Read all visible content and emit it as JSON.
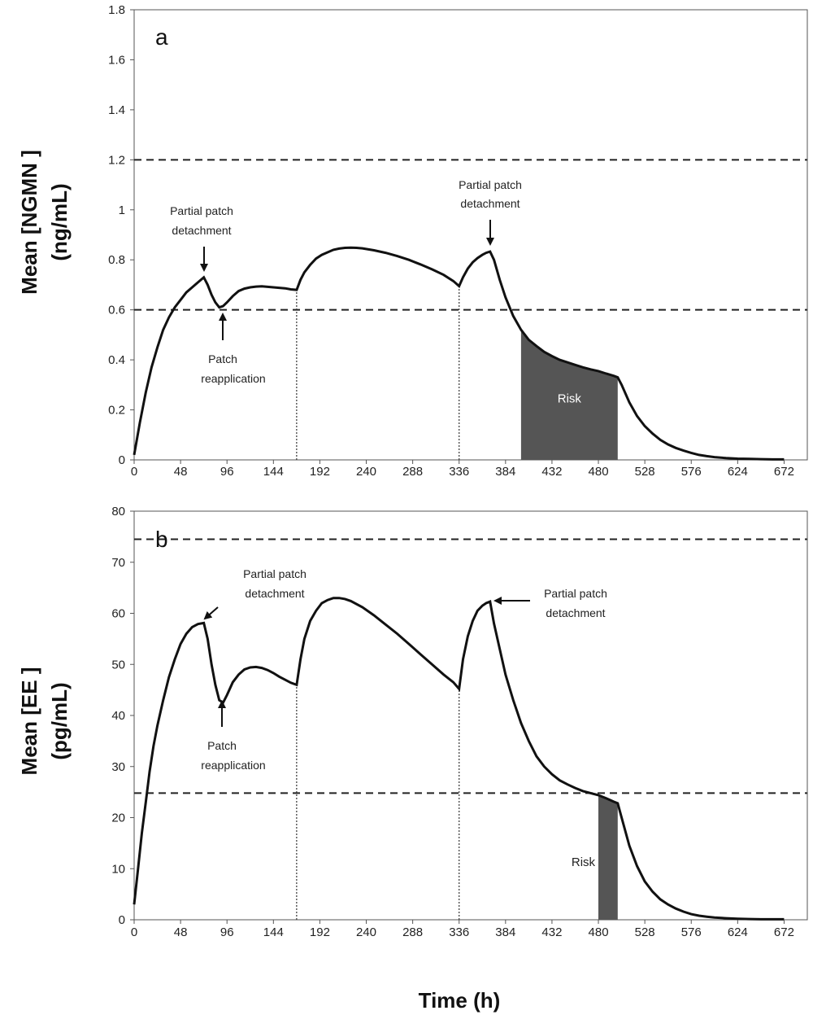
{
  "xlabel": "Time (h)",
  "x_ticks": [
    0,
    48,
    96,
    144,
    192,
    240,
    288,
    336,
    384,
    432,
    480,
    528,
    576,
    624,
    672
  ],
  "chart_data": [
    {
      "type": "line",
      "panel": "a",
      "ylabel_line1": "Mean [NGMN ]",
      "ylabel_line2": "(ng/mL)",
      "xlim": [
        0,
        696
      ],
      "ylim": [
        0,
        1.8
      ],
      "y_ticks": [
        0,
        0.2,
        0.4,
        0.6,
        0.8,
        1,
        1.2,
        1.4,
        1.6,
        1.8
      ],
      "thresholds": [
        1.2,
        0.6
      ],
      "patch_change_times": [
        168,
        336
      ],
      "series": [
        {
          "x": [
            0,
            6,
            12,
            18,
            24,
            30,
            36,
            42,
            48,
            54,
            60,
            66,
            72,
            76,
            80,
            84,
            88,
            92,
            96,
            102,
            108,
            114,
            120,
            126,
            132,
            138,
            144,
            150,
            156,
            162,
            168,
            172,
            176,
            182,
            188,
            194,
            200,
            206,
            212,
            218,
            224,
            230,
            236,
            248,
            260,
            272,
            284,
            296,
            308,
            320,
            330,
            336,
            340,
            345,
            350,
            355,
            360,
            364,
            368,
            372,
            378,
            384,
            392,
            400,
            408,
            416,
            424,
            432,
            440,
            448,
            456,
            464,
            472,
            480,
            488,
            496,
            500,
            504,
            512,
            520,
            528,
            536,
            544,
            552,
            560,
            568,
            576,
            584,
            592,
            600,
            612,
            624,
            636,
            648,
            660,
            672
          ],
          "values": [
            0.02,
            0.15,
            0.27,
            0.37,
            0.45,
            0.52,
            0.57,
            0.61,
            0.64,
            0.67,
            0.69,
            0.71,
            0.73,
            0.7,
            0.66,
            0.63,
            0.61,
            0.615,
            0.63,
            0.655,
            0.675,
            0.685,
            0.69,
            0.693,
            0.694,
            0.692,
            0.69,
            0.688,
            0.686,
            0.682,
            0.68,
            0.72,
            0.75,
            0.78,
            0.805,
            0.82,
            0.83,
            0.84,
            0.845,
            0.848,
            0.849,
            0.848,
            0.846,
            0.838,
            0.828,
            0.815,
            0.8,
            0.782,
            0.762,
            0.74,
            0.715,
            0.695,
            0.73,
            0.765,
            0.79,
            0.807,
            0.82,
            0.828,
            0.833,
            0.8,
            0.72,
            0.65,
            0.575,
            0.52,
            0.48,
            0.455,
            0.432,
            0.415,
            0.4,
            0.39,
            0.38,
            0.37,
            0.362,
            0.355,
            0.345,
            0.336,
            0.33,
            0.3,
            0.23,
            0.175,
            0.135,
            0.105,
            0.08,
            0.062,
            0.048,
            0.037,
            0.028,
            0.02,
            0.015,
            0.011,
            0.007,
            0.005,
            0.004,
            0.003,
            0.002,
            0.002
          ]
        }
      ],
      "risk": {
        "x_start": 400,
        "x_end": 500,
        "label": "Risk"
      },
      "annotations": [
        {
          "line1": "Partial patch",
          "line2": "detachment",
          "x": 72,
          "y": 0.73,
          "direction": "down"
        },
        {
          "line1": "Patch",
          "line2": "reapplication",
          "x": 88,
          "y": 0.61,
          "direction": "up"
        },
        {
          "line1": "Partial patch",
          "line2": "detachment",
          "x": 368,
          "y": 0.833,
          "direction": "down"
        }
      ]
    },
    {
      "type": "line",
      "panel": "b",
      "ylabel_line1": "Mean [EE ]",
      "ylabel_line2": "(pg/mL)",
      "xlim": [
        0,
        696
      ],
      "ylim": [
        0,
        80
      ],
      "y_ticks": [
        0,
        10,
        20,
        30,
        40,
        50,
        60,
        70,
        80
      ],
      "thresholds": [
        74.5,
        24.8
      ],
      "patch_change_times": [
        168,
        336
      ],
      "series": [
        {
          "x": [
            0,
            4,
            8,
            12,
            16,
            20,
            24,
            30,
            36,
            42,
            48,
            54,
            60,
            66,
            72,
            76,
            80,
            84,
            88,
            92,
            96,
            102,
            108,
            114,
            120,
            126,
            132,
            138,
            144,
            150,
            156,
            162,
            168,
            172,
            176,
            182,
            188,
            194,
            200,
            206,
            212,
            218,
            224,
            236,
            248,
            260,
            272,
            284,
            296,
            308,
            320,
            330,
            336,
            340,
            345,
            350,
            355,
            360,
            364,
            368,
            372,
            378,
            384,
            392,
            400,
            408,
            416,
            424,
            432,
            440,
            448,
            456,
            464,
            472,
            480,
            488,
            496,
            500,
            504,
            512,
            520,
            528,
            536,
            544,
            552,
            560,
            568,
            576,
            584,
            592,
            600,
            612,
            624,
            636,
            648,
            660,
            672
          ],
          "values": [
            3,
            10,
            17,
            23,
            29,
            34,
            38,
            43,
            47.5,
            51,
            54,
            56,
            57.3,
            57.9,
            58.1,
            55,
            50,
            46,
            43,
            42.5,
            44,
            46.5,
            48,
            49,
            49.4,
            49.5,
            49.3,
            48.9,
            48.3,
            47.6,
            47,
            46.4,
            46,
            51,
            55,
            58.5,
            60.5,
            62,
            62.6,
            63,
            63,
            62.8,
            62.4,
            61.2,
            59.6,
            57.8,
            56,
            54,
            52,
            50,
            48,
            46.5,
            45.2,
            51,
            55.5,
            58.5,
            60.5,
            61.5,
            62,
            62.3,
            58,
            53,
            48,
            43,
            38.5,
            35,
            32,
            30,
            28.5,
            27.3,
            26.5,
            25.8,
            25.2,
            24.8,
            24.4,
            23.8,
            23.1,
            22.8,
            20,
            14.5,
            10.5,
            7.5,
            5.5,
            4,
            3,
            2.2,
            1.6,
            1.1,
            0.8,
            0.6,
            0.45,
            0.3,
            0.2,
            0.15,
            0.1,
            0.1,
            0.1
          ]
        }
      ],
      "risk": {
        "x_start": 480,
        "x_end": 500,
        "label": "Risk"
      },
      "annotations": [
        {
          "line1": "Partial patch",
          "line2": "detachment",
          "x": 72,
          "y": 58.1,
          "direction": "left-down"
        },
        {
          "line1": "Patch",
          "line2": "reapplication",
          "x": 88,
          "y": 42.5,
          "direction": "up"
        },
        {
          "line1": "Partial patch",
          "line2": "detachment",
          "x": 370,
          "y": 62.3,
          "direction": "left"
        }
      ]
    }
  ]
}
